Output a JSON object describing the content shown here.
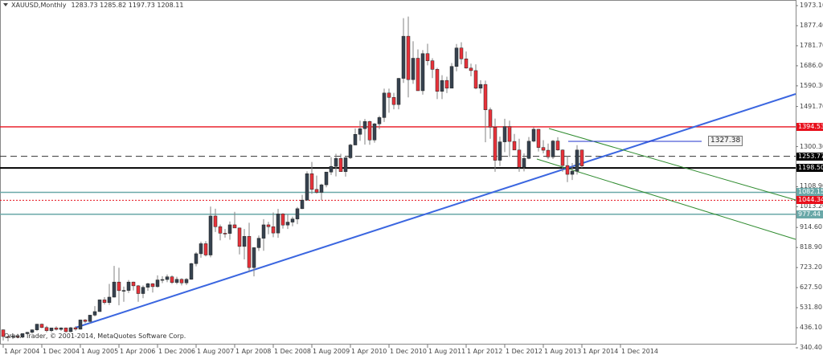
{
  "header": {
    "symbol": "XAUUSD,Monthly",
    "ohlc": "1283.73 1285.82 1197.73 1208.11"
  },
  "footer": {
    "copyright": "Orbex Trader, © 2001-2014, MetaQuotes Software Corp."
  },
  "colors": {
    "bull_body": "#36424f",
    "bear_body": "#e8323a",
    "wick": "#808080",
    "resistance": "#e8101c",
    "trend_blue": "#3b66e0",
    "channel_green": "#2e8b2e",
    "teal": "#6aa8a8",
    "black": "#000000"
  },
  "chart_data": {
    "type": "candlestick",
    "title": "XAUUSD,Monthly",
    "xlabel": "",
    "ylabel": "",
    "ylim": [
      340.4,
      1973.1
    ],
    "y_ticks": [
      "1973.10",
      "1877.40",
      "1781.70",
      "1686.00",
      "1590.30",
      "1491.70",
      "1394.53",
      "1300.30",
      "1253.77",
      "1198.50",
      "1108.90",
      "1082.15",
      "1044.34",
      "1013.20",
      "977.44",
      "914.60",
      "818.90",
      "723.20",
      "627.50",
      "531.80",
      "436.10",
      "340.40"
    ],
    "grid_ticks": [
      1973.1,
      1877.4,
      1781.7,
      1686.0,
      1590.3,
      1491.7,
      1300.3,
      1108.9,
      1013.2,
      914.6,
      818.9,
      723.2,
      627.5,
      531.8,
      436.1,
      340.4
    ],
    "x_tick_labels": [
      "1 Apr 2004",
      "1 Dec 2004",
      "1 Aug 2005",
      "1 Apr 2006",
      "1 Dec 2006",
      "1 Aug 2007",
      "1 Apr 2008",
      "1 Dec 2008",
      "1 Aug 2009",
      "1 Apr 2010",
      "1 Dec 2010",
      "1 Aug 2011",
      "1 Apr 2012",
      "1 Dec 2012",
      "1 Aug 2013",
      "1 Apr 2014",
      "1 Dec 2014"
    ],
    "x_tick_every_n_candles": 8,
    "first_candle": "Apr 2004",
    "last_ohlc": [
      1283.73,
      1285.82,
      1197.73,
      1208.11
    ],
    "candles": [
      [
        426,
        428,
        375,
        394
      ],
      [
        394,
        396,
        371,
        393
      ],
      [
        393,
        409,
        382,
        396
      ],
      [
        396,
        407,
        386,
        391
      ],
      [
        391,
        409,
        390,
        408
      ],
      [
        408,
        416,
        403,
        414
      ],
      [
        414,
        428,
        408,
        426
      ],
      [
        426,
        455,
        420,
        453
      ],
      [
        453,
        456,
        434,
        437
      ],
      [
        437,
        445,
        414,
        422
      ],
      [
        422,
        436,
        414,
        435
      ],
      [
        435,
        443,
        423,
        428
      ],
      [
        428,
        438,
        421,
        435
      ],
      [
        435,
        437,
        414,
        417
      ],
      [
        417,
        440,
        415,
        436
      ],
      [
        436,
        443,
        422,
        429
      ],
      [
        429,
        475,
        427,
        473
      ],
      [
        473,
        477,
        458,
        466
      ],
      [
        466,
        496,
        458,
        496
      ],
      [
        496,
        539,
        490,
        513
      ],
      [
        513,
        571,
        512,
        569
      ],
      [
        569,
        582,
        547,
        556
      ],
      [
        556,
        645,
        545,
        582
      ],
      [
        582,
        731,
        580,
        654
      ],
      [
        654,
        722,
        543,
        613
      ],
      [
        613,
        632,
        560,
        614
      ],
      [
        614,
        664,
        602,
        654
      ],
      [
        654,
        656,
        614,
        636
      ],
      [
        636,
        640,
        560,
        599
      ],
      [
        599,
        638,
        577,
        629
      ],
      [
        629,
        651,
        612,
        646
      ],
      [
        646,
        649,
        604,
        632
      ],
      [
        632,
        686,
        628,
        664
      ],
      [
        664,
        682,
        649,
        666
      ],
      [
        666,
        690,
        653,
        679
      ],
      [
        679,
        686,
        645,
        652
      ],
      [
        652,
        679,
        643,
        667
      ],
      [
        667,
        672,
        638,
        650
      ],
      [
        650,
        673,
        640,
        667
      ],
      [
        667,
        746,
        665,
        742
      ],
      [
        742,
        797,
        729,
        789
      ],
      [
        789,
        847,
        770,
        837
      ],
      [
        837,
        849,
        776,
        783
      ],
      [
        783,
        1014,
        772,
        969
      ],
      [
        969,
        1004,
        893,
        918
      ],
      [
        918,
        928,
        853,
        887
      ],
      [
        887,
        907,
        866,
        886
      ],
      [
        886,
        943,
        856,
        927
      ],
      [
        927,
        989,
        912,
        912
      ],
      [
        912,
        914,
        786,
        824
      ],
      [
        824,
        907,
        762,
        872
      ],
      [
        872,
        937,
        702,
        723
      ],
      [
        723,
        820,
        681,
        818
      ],
      [
        818,
        876,
        802,
        863
      ],
      [
        863,
        954,
        803,
        927
      ],
      [
        927,
        941,
        882,
        918
      ],
      [
        918,
        986,
        868,
        888
      ],
      [
        888,
        1003,
        865,
        979
      ],
      [
        979,
        983,
        909,
        926
      ],
      [
        926,
        975,
        907,
        940
      ],
      [
        940,
        966,
        920,
        955
      ],
      [
        955,
        1012,
        930,
        1004
      ],
      [
        1004,
        1070,
        1002,
        1045
      ],
      [
        1045,
        1182,
        1043,
        1171
      ],
      [
        1171,
        1227,
        1075,
        1096
      ],
      [
        1096,
        1162,
        1076,
        1082
      ],
      [
        1082,
        1123,
        1045,
        1118
      ],
      [
        1118,
        1167,
        1106,
        1179
      ],
      [
        1179,
        1250,
        1165,
        1206
      ],
      [
        1206,
        1266,
        1158,
        1244
      ],
      [
        1244,
        1266,
        1183,
        1181
      ],
      [
        1181,
        1249,
        1157,
        1247
      ],
      [
        1247,
        1314,
        1241,
        1308
      ],
      [
        1308,
        1387,
        1307,
        1359
      ],
      [
        1359,
        1424,
        1328,
        1386
      ],
      [
        1386,
        1432,
        1310,
        1420
      ],
      [
        1420,
        1424,
        1309,
        1332
      ],
      [
        1332,
        1413,
        1319,
        1409
      ],
      [
        1409,
        1447,
        1384,
        1439
      ],
      [
        1439,
        1577,
        1418,
        1556
      ],
      [
        1556,
        1577,
        1462,
        1535
      ],
      [
        1535,
        1557,
        1478,
        1501
      ],
      [
        1501,
        1628,
        1478,
        1626
      ],
      [
        1626,
        1913,
        1604,
        1827
      ],
      [
        1827,
        1921,
        1535,
        1620
      ],
      [
        1620,
        1803,
        1600,
        1722
      ],
      [
        1722,
        1764,
        1606,
        1567
      ],
      [
        1567,
        1761,
        1548,
        1744
      ],
      [
        1744,
        1791,
        1688,
        1710
      ],
      [
        1710,
        1722,
        1627,
        1669
      ],
      [
        1669,
        1676,
        1527,
        1564
      ],
      [
        1564,
        1641,
        1527,
        1616
      ],
      [
        1616,
        1634,
        1556,
        1579
      ],
      [
        1579,
        1699,
        1583,
        1683
      ],
      [
        1683,
        1790,
        1660,
        1771
      ],
      [
        1771,
        1798,
        1693,
        1719
      ],
      [
        1719,
        1754,
        1672,
        1675
      ],
      [
        1675,
        1696,
        1636,
        1663
      ],
      [
        1663,
        1693,
        1574,
        1579
      ],
      [
        1579,
        1617,
        1554,
        1597
      ],
      [
        1597,
        1615,
        1321,
        1476
      ],
      [
        1476,
        1487,
        1338,
        1393
      ],
      [
        1393,
        1434,
        1180,
        1235
      ],
      [
        1235,
        1348,
        1208,
        1323
      ],
      [
        1323,
        1433,
        1274,
        1396
      ],
      [
        1396,
        1424,
        1251,
        1325
      ],
      [
        1325,
        1361,
        1283,
        1284
      ],
      [
        1284,
        1338,
        1180,
        1202
      ],
      [
        1202,
        1268,
        1182,
        1244
      ],
      [
        1244,
        1346,
        1240,
        1326
      ],
      [
        1326,
        1392,
        1321,
        1383
      ],
      [
        1383,
        1385,
        1277,
        1296
      ],
      [
        1296,
        1331,
        1268,
        1283
      ],
      [
        1283,
        1315,
        1240,
        1251
      ],
      [
        1251,
        1332,
        1241,
        1327
      ],
      [
        1327,
        1345,
        1281,
        1284
      ],
      [
        1284,
        1287,
        1180,
        1210
      ],
      [
        1210,
        1255,
        1131,
        1168
      ],
      [
        1168,
        1222,
        1141,
        1183
      ],
      [
        1183,
        1307,
        1167,
        1284
      ],
      [
        1284,
        1286,
        1198,
        1208
      ]
    ]
  },
  "price_labels": [
    {
      "value": "1394.53",
      "price": 1394.53,
      "bg": "#e8101c",
      "fg": "#ffffff"
    },
    {
      "value": "1253.77",
      "price": 1253.77,
      "bg": "#000000",
      "fg": "#ffffff"
    },
    {
      "value": "1198.50",
      "price": 1198.5,
      "bg": "#000000",
      "fg": "#ffffff"
    },
    {
      "value": "1082.15",
      "price": 1082.15,
      "bg": "#6aa8a8",
      "fg": "#ffffff"
    },
    {
      "value": "1044.34",
      "price": 1044.34,
      "bg": "#e8101c",
      "fg": "#ffffff"
    },
    {
      "value": "977.44",
      "price": 977.44,
      "bg": "#6aa8a8",
      "fg": "#ffffff"
    }
  ],
  "annotation": {
    "value": "1327.38",
    "price": 1327.38
  },
  "lines": {
    "resistance_1394": 1394.53,
    "dashed_1253": 1253.77,
    "support_1198": 1198.5,
    "teal_1082": 1082.15,
    "red_dotted_1044": 1044.34,
    "teal_977": 977.44
  }
}
